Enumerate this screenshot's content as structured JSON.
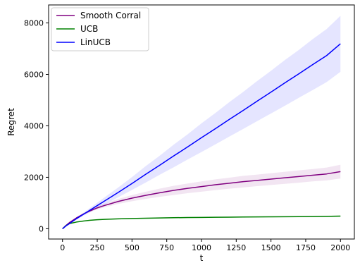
{
  "chart_data": {
    "type": "line",
    "xlabel": "t",
    "ylabel": "Regret",
    "xlim": [
      -100,
      2100
    ],
    "ylim": [
      -400,
      8700
    ],
    "xticks": [
      0,
      250,
      500,
      750,
      1000,
      1250,
      1500,
      1750,
      2000
    ],
    "yticks": [
      0,
      2000,
      4000,
      6000,
      8000
    ],
    "grid": false,
    "legend_position": "top-left",
    "x": [
      0,
      25,
      50,
      100,
      150,
      200,
      250,
      300,
      400,
      500,
      600,
      700,
      800,
      900,
      1000,
      1100,
      1200,
      1300,
      1400,
      1500,
      1600,
      1700,
      1800,
      1900,
      2000
    ],
    "series": [
      {
        "name": "Smooth Corral",
        "color": "#800080",
        "values": [
          0,
          130,
          240,
          420,
          570,
          700,
          810,
          900,
          1060,
          1190,
          1300,
          1400,
          1490,
          1570,
          1640,
          1710,
          1770,
          1830,
          1880,
          1930,
          1980,
          2030,
          2080,
          2130,
          2220
        ],
        "lower": [
          0,
          120,
          225,
          395,
          535,
          655,
          750,
          830,
          965,
          1070,
          1160,
          1240,
          1310,
          1380,
          1440,
          1500,
          1555,
          1605,
          1655,
          1700,
          1745,
          1790,
          1840,
          1880,
          1950
        ],
        "upper": [
          0,
          140,
          255,
          445,
          605,
          745,
          870,
          970,
          1155,
          1310,
          1440,
          1560,
          1670,
          1760,
          1840,
          1920,
          1985,
          2055,
          2105,
          2160,
          2215,
          2270,
          2320,
          2380,
          2490
        ]
      },
      {
        "name": "UCB",
        "color": "#008000",
        "values": [
          0,
          120,
          200,
          260,
          300,
          330,
          350,
          365,
          385,
          400,
          410,
          420,
          428,
          435,
          441,
          446,
          451,
          455,
          459,
          463,
          467,
          471,
          475,
          479,
          490
        ],
        "lower": [
          0,
          112,
          188,
          246,
          284,
          313,
          332,
          346,
          365,
          379,
          388,
          397,
          404,
          411,
          416,
          421,
          425,
          429,
          433,
          436,
          440,
          443,
          447,
          451,
          460
        ],
        "upper": [
          0,
          128,
          212,
          274,
          316,
          347,
          368,
          384,
          405,
          421,
          432,
          443,
          452,
          459,
          466,
          471,
          477,
          481,
          485,
          490,
          494,
          499,
          503,
          507,
          520
        ]
      },
      {
        "name": "LinUCB",
        "color": "#0000ff",
        "values": [
          0,
          110,
          200,
          390,
          560,
          730,
          900,
          1070,
          1410,
          1760,
          2120,
          2470,
          2830,
          3180,
          3540,
          3890,
          4250,
          4600,
          4960,
          5310,
          5670,
          6020,
          6380,
          6730,
          7190
        ],
        "lower": [
          0,
          100,
          180,
          350,
          500,
          645,
          790,
          930,
          1220,
          1510,
          1800,
          2100,
          2390,
          2690,
          2980,
          3280,
          3580,
          3880,
          4180,
          4480,
          4780,
          5090,
          5390,
          5700,
          6100
        ],
        "upper": [
          0,
          120,
          220,
          430,
          620,
          815,
          1010,
          1210,
          1600,
          2010,
          2440,
          2840,
          3270,
          3670,
          4100,
          4500,
          4920,
          5320,
          5740,
          6140,
          6560,
          6950,
          7370,
          7760,
          8280
        ]
      }
    ]
  }
}
